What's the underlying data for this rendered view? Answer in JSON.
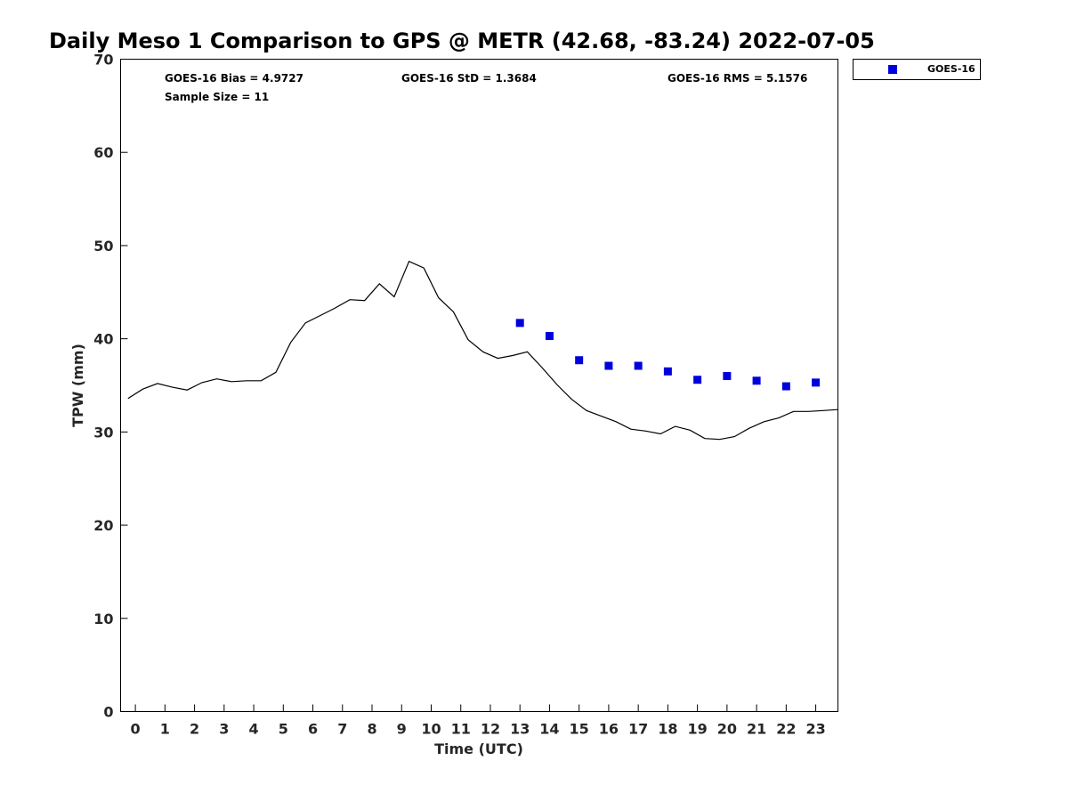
{
  "chart_data": {
    "type": "line",
    "title": "Daily Meso 1 Comparison to GPS @ METR (42.68, -83.24) 2022-07-05",
    "xlabel": "Time (UTC)",
    "ylabel": "TPW (mm)",
    "xlim": [
      -0.5,
      23.75
    ],
    "ylim": [
      0,
      70
    ],
    "x_ticks": [
      "0",
      "1",
      "2",
      "3",
      "4",
      "5",
      "6",
      "7",
      "8",
      "9",
      "10",
      "11",
      "12",
      "13",
      "14",
      "15",
      "16",
      "17",
      "18",
      "19",
      "20",
      "21",
      "22",
      "23"
    ],
    "y_ticks": [
      "0",
      "10",
      "20",
      "30",
      "40",
      "50",
      "60",
      "70"
    ],
    "grid": false,
    "legend_position": "outside-top-right",
    "stats": {
      "bias": "GOES-16 Bias = 4.9727",
      "std": "GOES-16 StD = 1.3684",
      "rms": "GOES-16 RMS = 5.1576",
      "sample_size": "Sample Size = 11"
    },
    "series": [
      {
        "kind": "line",
        "color": "#000000",
        "x": [
          -0.25,
          0.25,
          0.75,
          1.25,
          1.75,
          2.25,
          2.75,
          3.25,
          3.75,
          4.25,
          4.75,
          5.25,
          5.75,
          6.25,
          6.75,
          7.25,
          7.75,
          8.25,
          8.75,
          9.25,
          9.75,
          10.25,
          10.75,
          11.25,
          11.75,
          12.25,
          12.75,
          13.25,
          13.75,
          14.25,
          14.75,
          15.25,
          15.75,
          16.25,
          16.75,
          17.25,
          17.75,
          18.25,
          18.75,
          19.25,
          19.75,
          20.25,
          20.75,
          21.25,
          21.75,
          22.25,
          22.75,
          23.25,
          23.75
        ],
        "y": [
          33.6,
          34.6,
          35.2,
          34.8,
          34.5,
          35.3,
          35.7,
          35.4,
          35.5,
          35.5,
          36.4,
          39.6,
          41.7,
          42.5,
          43.3,
          44.2,
          44.1,
          45.9,
          44.5,
          48.3,
          47.6,
          44.4,
          42.9,
          39.9,
          38.6,
          37.9,
          38.2,
          38.6,
          36.9,
          35.1,
          33.5,
          32.3,
          31.7,
          31.1,
          30.3,
          30.1,
          29.8,
          30.6,
          30.2,
          29.3,
          29.2,
          29.5,
          30.4,
          31.1,
          31.5,
          32.2,
          32.2,
          32.3,
          32.4
        ]
      },
      {
        "kind": "scatter",
        "name": "GOES-16",
        "color": "#0000dd",
        "marker": "square",
        "x": [
          13,
          14,
          15,
          16,
          17,
          18,
          19,
          20,
          21,
          22,
          23
        ],
        "y": [
          41.7,
          40.3,
          37.7,
          37.1,
          37.1,
          36.5,
          35.6,
          36.0,
          35.5,
          34.9,
          35.3
        ]
      }
    ]
  }
}
